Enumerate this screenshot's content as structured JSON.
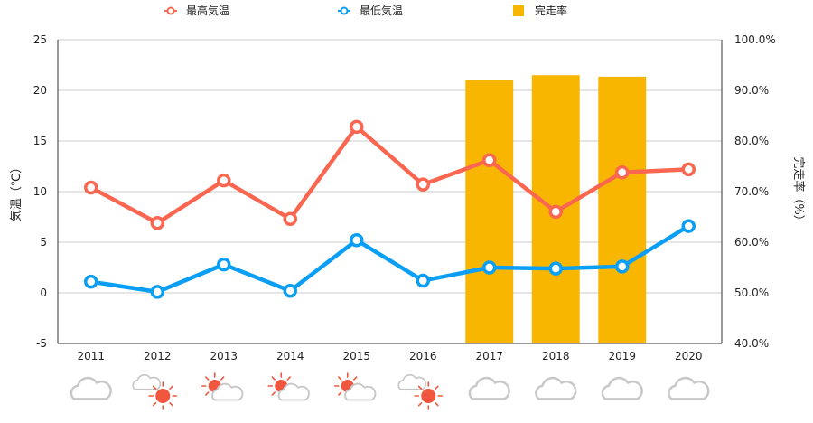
{
  "chart_data": {
    "type": "line",
    "categories": [
      "2011",
      "2012",
      "2013",
      "2014",
      "2015",
      "2016",
      "2017",
      "2018",
      "2019",
      "2020"
    ],
    "series": [
      {
        "name": "最高気温",
        "type": "line",
        "axis": "left",
        "color": "#fa6650",
        "values": [
          10.4,
          6.9,
          11.1,
          7.3,
          16.4,
          10.7,
          13.1,
          8.0,
          11.9,
          12.2
        ]
      },
      {
        "name": "最低気温",
        "type": "line",
        "axis": "left",
        "color": "#0a9ff5",
        "values": [
          1.1,
          0.1,
          2.8,
          0.2,
          5.2,
          1.2,
          2.5,
          2.4,
          2.6,
          6.6
        ]
      },
      {
        "name": "完走率",
        "type": "bar",
        "axis": "right",
        "color": "#f8b600",
        "values": [
          null,
          null,
          null,
          null,
          null,
          null,
          92.1,
          93.0,
          92.7,
          null
        ]
      }
    ],
    "y_left": {
      "label": "気温（℃）",
      "min": -5,
      "max": 25,
      "ticks": [
        -5,
        0,
        5,
        10,
        15,
        20,
        25
      ]
    },
    "y_right": {
      "label": "完走率（%）",
      "min": 40,
      "max": 100,
      "ticks": [
        "40.0%",
        "50.0%",
        "60.0%",
        "70.0%",
        "80.0%",
        "90.0%",
        "100.0%"
      ],
      "tick_values": [
        40,
        50,
        60,
        70,
        80,
        90,
        100
      ]
    },
    "grid": true,
    "legend_position": "top",
    "weather_icons": [
      "cloud",
      "cloud-sun",
      "sun-cloud",
      "sun-cloud",
      "sun-cloud",
      "cloud-sun",
      "cloud",
      "cloud",
      "cloud",
      "cloud"
    ]
  }
}
